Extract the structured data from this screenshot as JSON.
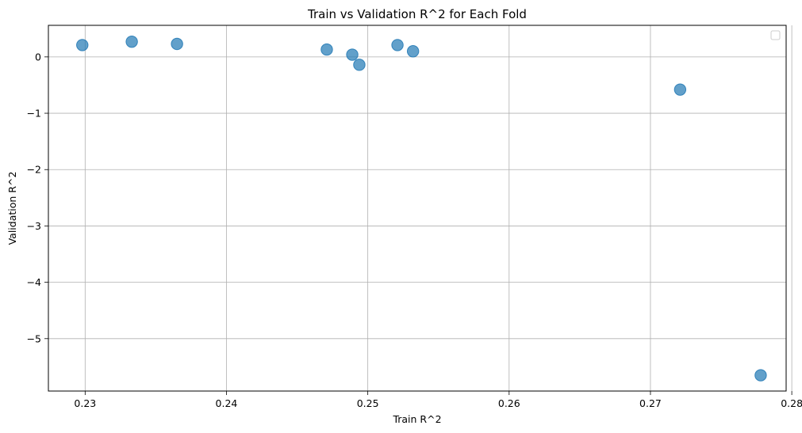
{
  "chart_data": {
    "type": "scatter",
    "title": "Train vs Validation R^2 for Each Fold",
    "xlabel": "Train R^2",
    "ylabel": "Validation R^2",
    "xlim": [
      0.2274,
      0.2796
    ],
    "ylim": [
      -5.93,
      0.56
    ],
    "xticks": [
      0.23,
      0.24,
      0.25,
      0.26,
      0.27,
      0.28
    ],
    "xtick_labels": [
      "0.23",
      "0.24",
      "0.25",
      "0.26",
      "0.27",
      "0.28"
    ],
    "yticks": [
      0,
      -1,
      -2,
      -3,
      -4,
      -5
    ],
    "ytick_labels": [
      "0",
      "−1",
      "−2",
      "−3",
      "−4",
      "−5"
    ],
    "grid": true,
    "legend": {
      "placement": "top-right",
      "entries": []
    },
    "marker_color": "#1f77b4",
    "marker_alpha": 0.7,
    "series": [
      {
        "x": [
          0.2298,
          0.2333,
          0.2365,
          0.2471,
          0.2489,
          0.2494,
          0.2521,
          0.2532,
          0.2721,
          0.2778
        ],
        "y": [
          0.21,
          0.27,
          0.23,
          0.13,
          0.04,
          -0.14,
          0.21,
          0.1,
          -0.58,
          -5.65
        ]
      }
    ]
  }
}
